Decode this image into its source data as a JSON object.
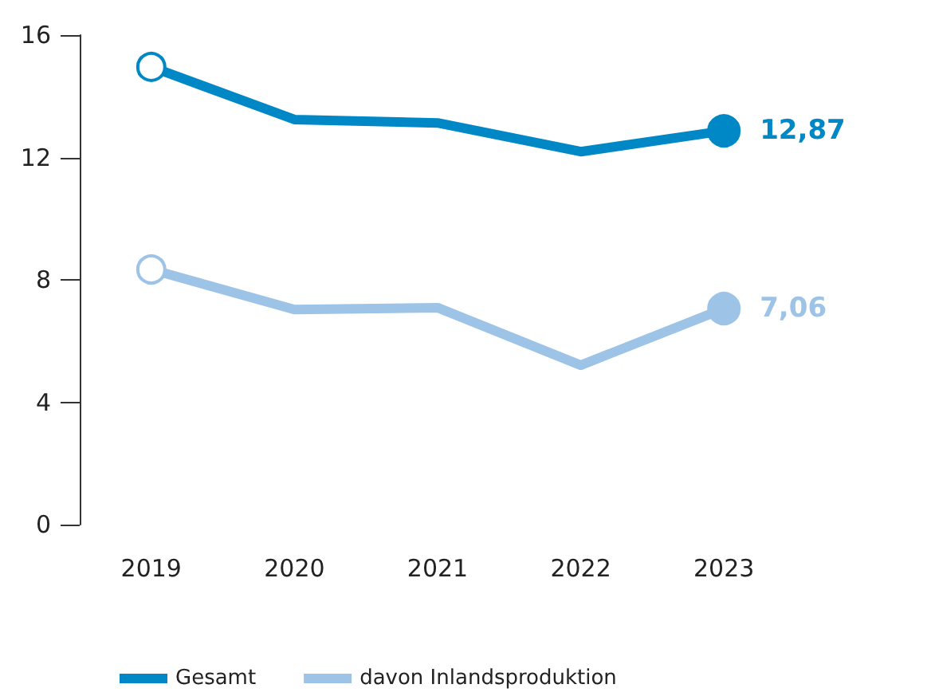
{
  "chart_data": {
    "type": "line",
    "categories": [
      "2019",
      "2020",
      "2021",
      "2022",
      "2023"
    ],
    "series": [
      {
        "name": "Gesamt",
        "color": "#0088c6",
        "values": [
          14.96,
          13.24,
          13.13,
          12.19,
          12.87
        ],
        "value_labels": [
          null,
          null,
          null,
          null,
          "12,87"
        ]
      },
      {
        "name": "davon Inlandsproduktion",
        "color": "#9dc3e6",
        "values": [
          8.34,
          7.03,
          7.09,
          5.21,
          7.06
        ],
        "value_labels": [
          null,
          null,
          null,
          null,
          "7,06"
        ]
      }
    ],
    "ylim": [
      0,
      16
    ],
    "yticks": [
      0,
      4,
      8,
      12,
      16
    ],
    "grid": false,
    "legend": "bottom left",
    "line_style": "solid"
  }
}
